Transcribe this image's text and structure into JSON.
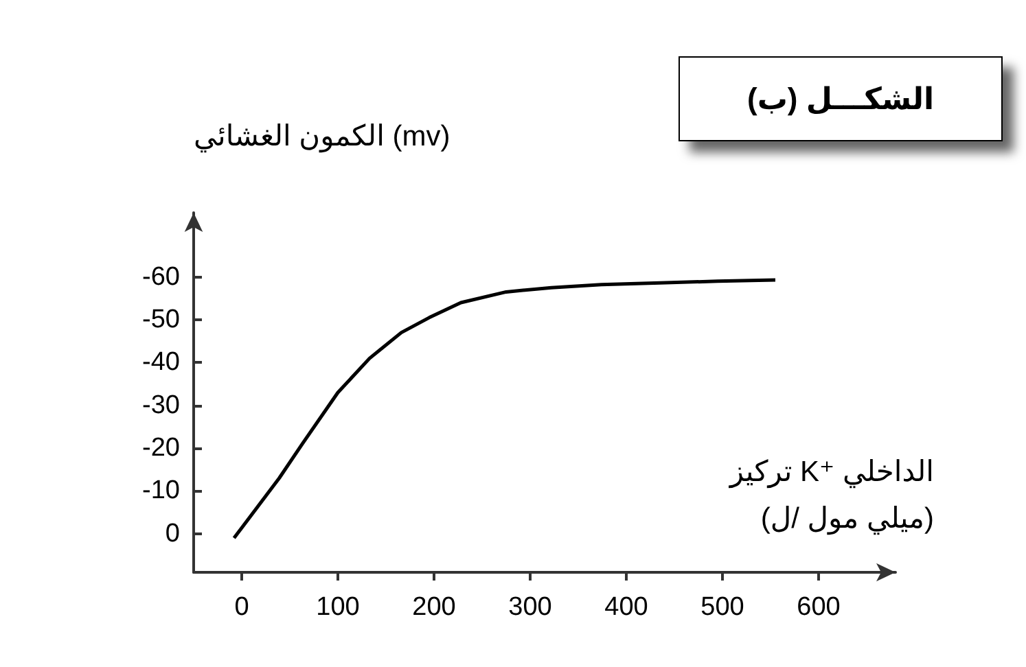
{
  "chart_data": {
    "type": "line",
    "title": "الشكـــل (ب)",
    "ylabel": "الكمون الغشائي (mv)",
    "xlabel": "تركيز K⁺ الداخلي\n(ميلي مول /ل)",
    "x": [
      -8,
      39,
      63,
      100,
      133,
      166,
      195,
      228,
      275,
      322,
      374,
      435,
      495,
      555
    ],
    "series": [
      {
        "color": "#000000",
        "values": [
          1,
          -13,
          -21,
          -33,
          -41,
          -47,
          -50.5,
          -54,
          -56.5,
          -57.5,
          -58.2,
          -58.6,
          -59,
          -59.3
        ]
      }
    ],
    "xlim": [
      -50,
      680
    ],
    "xticks": [
      0,
      100,
      200,
      300,
      400,
      500,
      600
    ],
    "ylim": [
      9,
      -75
    ],
    "yticks": [
      0,
      -10,
      -20,
      -30,
      -40,
      -50,
      -60
    ],
    "grid": false,
    "marker": "none"
  }
}
